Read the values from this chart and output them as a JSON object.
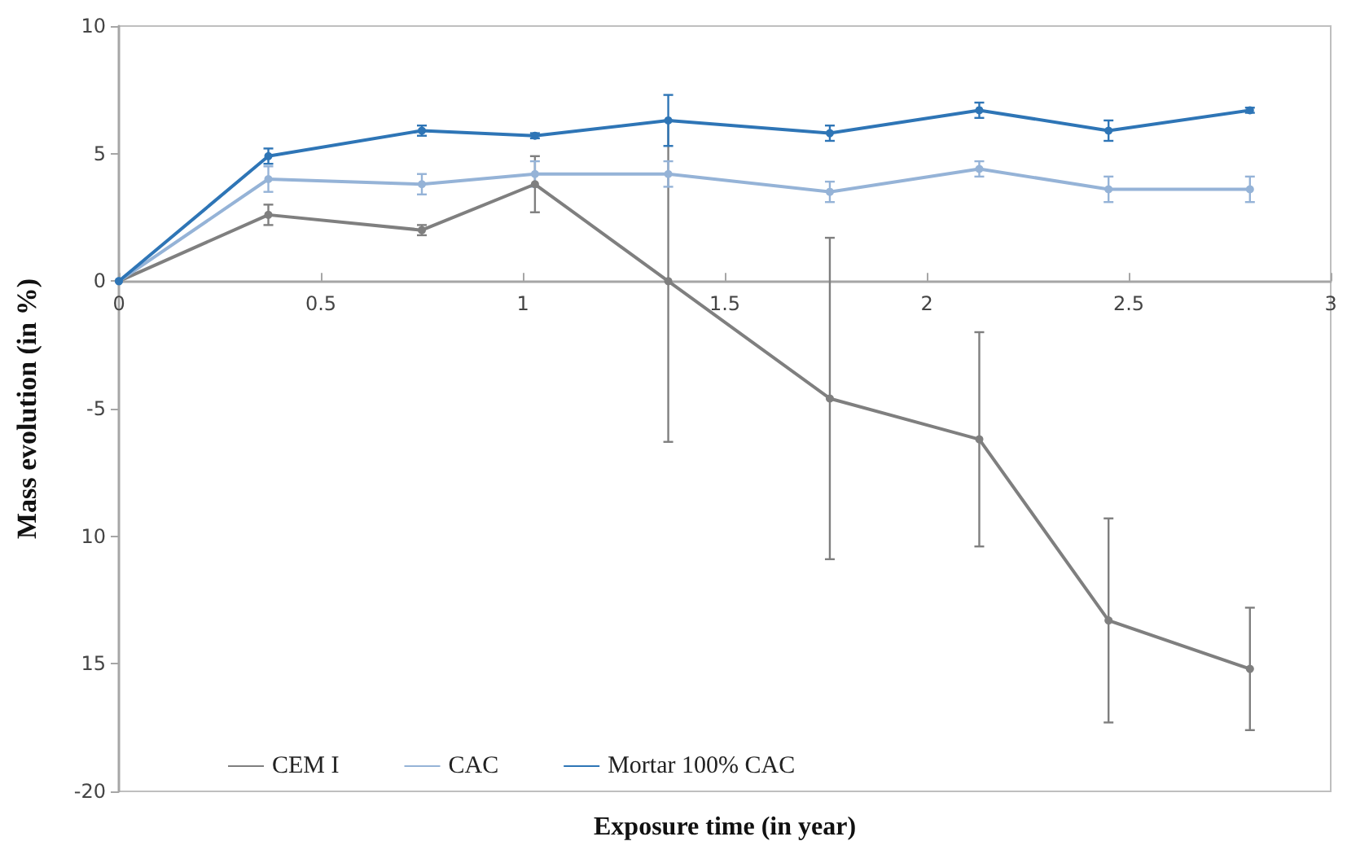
{
  "chart_data": {
    "type": "line",
    "xlabel": "Exposure time (in year)",
    "ylabel": "Mass evolution (in %)",
    "x": [
      0,
      0.37,
      0.75,
      1.03,
      1.36,
      1.76,
      2.13,
      2.45,
      2.8
    ],
    "series": [
      {
        "name": "CEM I",
        "color": "#7f7f7f",
        "values": [
          0,
          2.6,
          2.0,
          3.8,
          0,
          -4.6,
          -6.2,
          -13.3,
          -15.2
        ],
        "errors": [
          null,
          0.4,
          0.2,
          1.1,
          6.3,
          6.3,
          4.2,
          4,
          2.4
        ]
      },
      {
        "name": "CAC",
        "color": "#95b3d7",
        "values": [
          0,
          4.0,
          3.8,
          4.2,
          4.2,
          3.5,
          4.4,
          3.6,
          3.6
        ],
        "errors": [
          null,
          0.5,
          0.4,
          0.5,
          0.5,
          0.4,
          0.3,
          0.5,
          0.5
        ]
      },
      {
        "name": "Mortar 100% CAC",
        "color": "#2e75b6",
        "values": [
          0,
          4.9,
          5.9,
          5.7,
          6.3,
          5.8,
          6.7,
          5.9,
          6.7
        ],
        "errors": [
          null,
          0.3,
          0.2,
          0.1,
          1.0,
          0.3,
          0.3,
          0.4,
          0.1
        ]
      }
    ],
    "xlim": [
      0,
      3
    ],
    "xticks": [
      0,
      0.5,
      1,
      1.5,
      2,
      2.5,
      3
    ],
    "ylim": [
      -20,
      10
    ],
    "yticks": [
      -20,
      {
        "value": -15,
        "label": "15"
      },
      {
        "value": -10,
        "label": "10"
      },
      -5,
      0,
      5,
      10
    ],
    "grid": false,
    "legend": "bottom left",
    "marker": "circle",
    "line_style": "solid"
  }
}
